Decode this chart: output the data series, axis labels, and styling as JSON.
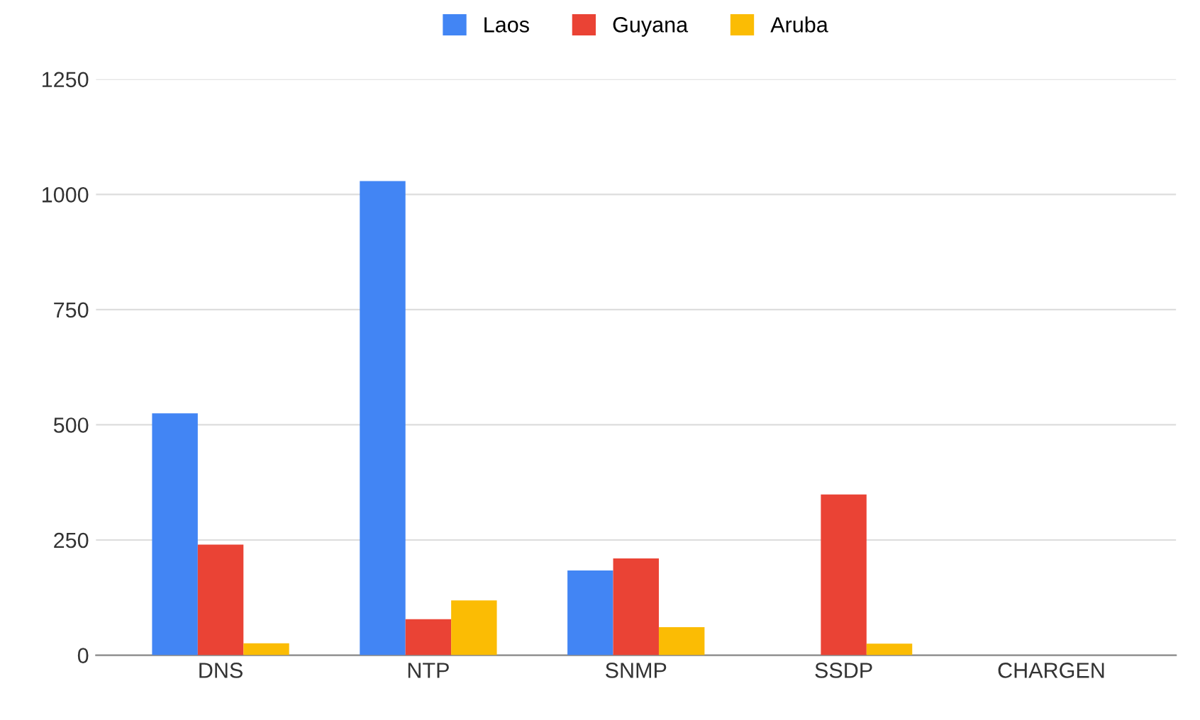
{
  "chart_data": {
    "type": "bar",
    "categories": [
      "DNS",
      "NTP",
      "SNMP",
      "SSDP",
      "CHARGEN"
    ],
    "series": [
      {
        "name": "Laos",
        "color": "#4285f4",
        "values": [
          525,
          1029,
          184,
          0,
          0
        ]
      },
      {
        "name": "Guyana",
        "color": "#ea4335",
        "values": [
          240,
          78,
          210,
          349,
          0
        ]
      },
      {
        "name": "Aruba",
        "color": "#fbbc04",
        "values": [
          26,
          119,
          61,
          25,
          0
        ]
      }
    ],
    "ylim": [
      0,
      1250
    ],
    "yticks": [
      0,
      250,
      500,
      750,
      1000,
      1250
    ],
    "grid": "y",
    "legend": "top"
  }
}
